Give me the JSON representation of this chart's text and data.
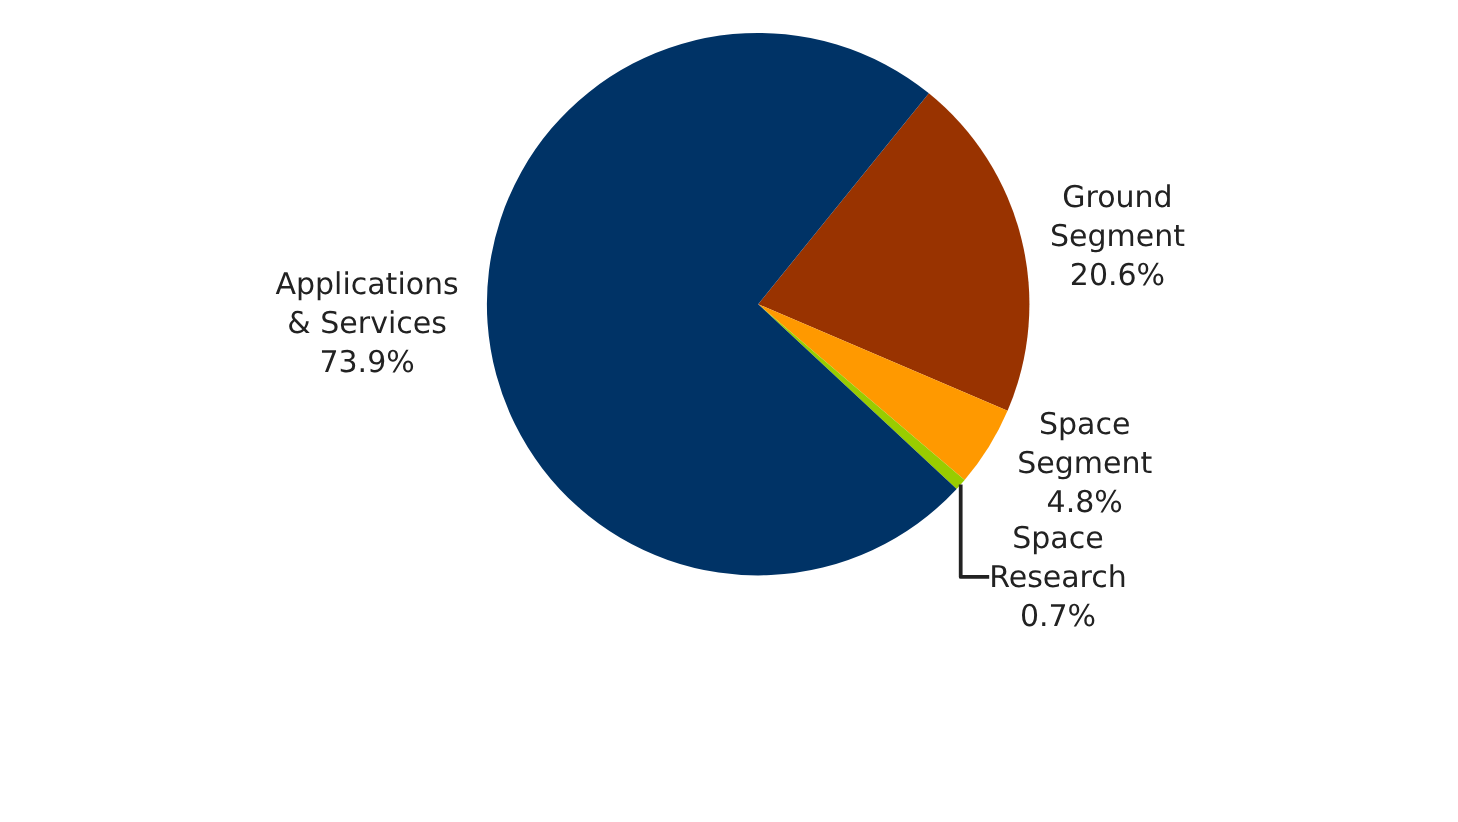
{
  "chart_data": {
    "type": "pie",
    "categories": [
      "Ground Segment",
      "Space Segment",
      "Space Research",
      "Applications & Services"
    ],
    "values": [
      20.6,
      4.8,
      0.7,
      73.9
    ],
    "value_labels": [
      "20.6%",
      "4.8%",
      "0.7%",
      "73.9%"
    ],
    "colors": [
      "#993300",
      "#ff9900",
      "#99cc00",
      "#003366"
    ],
    "legend": false
  }
}
